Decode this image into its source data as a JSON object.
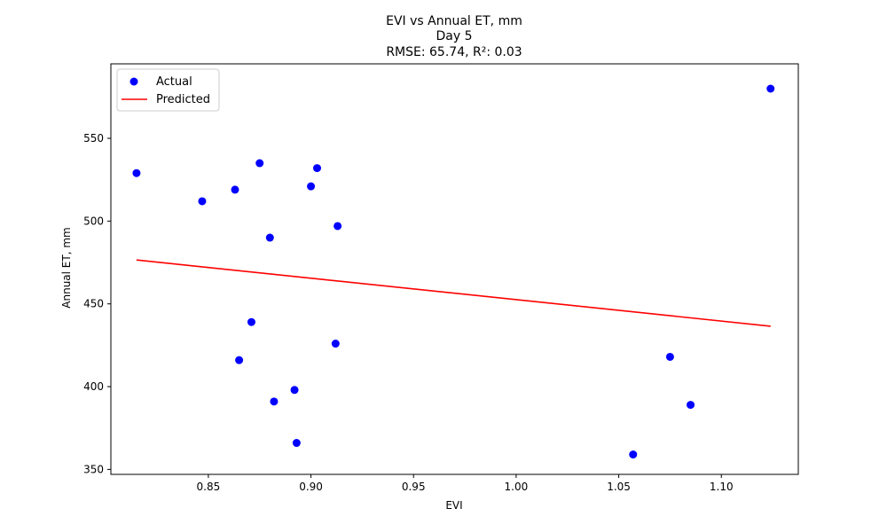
{
  "chart_data": {
    "type": "scatter",
    "title_lines": [
      "EVI vs Annual ET, mm",
      "Day 5",
      "RMSE: 65.74, R²: 0.03"
    ],
    "xlabel": "EVI",
    "ylabel": "Annual ET, mm",
    "xlim": [
      0.8025,
      1.1375
    ],
    "ylim": [
      347,
      595
    ],
    "xticks": [
      0.85,
      0.9,
      0.95,
      1.0,
      1.05,
      1.1
    ],
    "xtick_labels": [
      "0.85",
      "0.90",
      "0.95",
      "1.00",
      "1.05",
      "1.10"
    ],
    "yticks": [
      350,
      400,
      450,
      500,
      550
    ],
    "ytick_labels": [
      "350",
      "400",
      "450",
      "500",
      "550"
    ],
    "grid": false,
    "legend": {
      "position": "top-left",
      "entries": [
        {
          "label": "Actual",
          "marker": "circle",
          "color": "#0000ff"
        },
        {
          "label": "Predicted",
          "marker": "line",
          "color": "#ff0000"
        }
      ]
    },
    "series": [
      {
        "name": "Actual",
        "kind": "scatter",
        "color": "#0000ff",
        "points": [
          {
            "x": 0.815,
            "y": 529
          },
          {
            "x": 0.847,
            "y": 512
          },
          {
            "x": 0.863,
            "y": 519
          },
          {
            "x": 0.875,
            "y": 535
          },
          {
            "x": 0.88,
            "y": 490
          },
          {
            "x": 0.871,
            "y": 439
          },
          {
            "x": 0.865,
            "y": 416
          },
          {
            "x": 0.882,
            "y": 391
          },
          {
            "x": 0.892,
            "y": 398
          },
          {
            "x": 0.893,
            "y": 366
          },
          {
            "x": 0.9,
            "y": 521
          },
          {
            "x": 0.903,
            "y": 532
          },
          {
            "x": 0.913,
            "y": 497
          },
          {
            "x": 0.912,
            "y": 426
          },
          {
            "x": 1.057,
            "y": 359
          },
          {
            "x": 1.075,
            "y": 418
          },
          {
            "x": 1.085,
            "y": 389
          },
          {
            "x": 1.124,
            "y": 580
          }
        ]
      },
      {
        "name": "Predicted",
        "kind": "line",
        "color": "#ff0000",
        "points": [
          {
            "x": 0.815,
            "y": 476.5
          },
          {
            "x": 1.124,
            "y": 436.5
          }
        ]
      }
    ]
  }
}
